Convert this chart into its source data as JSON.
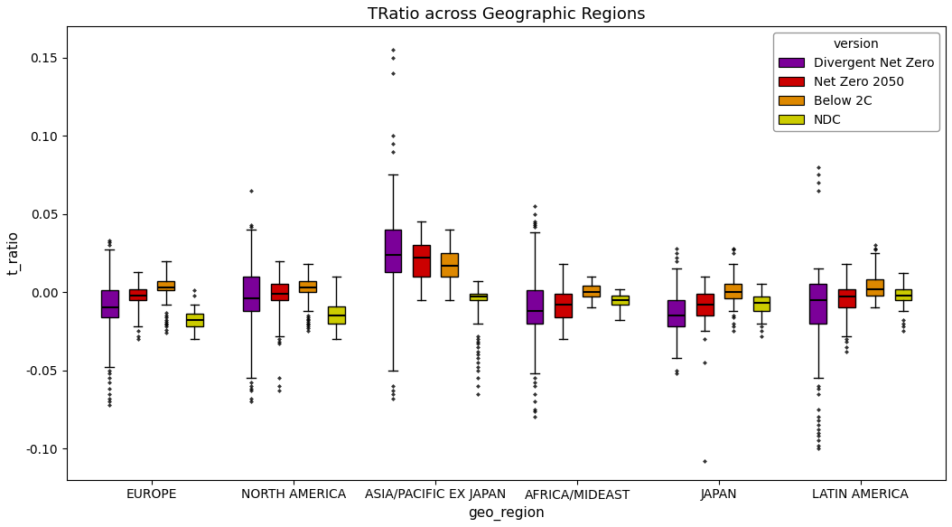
{
  "title": "TRatio across Geographic Regions",
  "xlabel": "geo_region",
  "ylabel": "t_ratio",
  "regions": [
    "EUROPE",
    "NORTH AMERICA",
    "ASIA/PACIFIC EX JAPAN",
    "AFRICA/MIDEAST",
    "JAPAN",
    "LATIN AMERICA"
  ],
  "versions": [
    "Divergent Net Zero",
    "Net Zero 2050",
    "Below 2C",
    "NDC"
  ],
  "colors": [
    "#7b0099",
    "#cc0000",
    "#dd8800",
    "#cccc00"
  ],
  "legend_title": "version",
  "ylim": [
    -0.12,
    0.17
  ],
  "yticks": [
    -0.1,
    -0.05,
    0.0,
    0.05,
    0.1,
    0.15
  ],
  "box_stats": {
    "EUROPE": {
      "Divergent Net Zero": {
        "q1": -0.016,
        "median": -0.01,
        "q3": 0.001,
        "whislo": -0.048,
        "whishi": 0.027,
        "fliers": [
          -0.055,
          -0.058,
          -0.062,
          -0.065,
          -0.072,
          -0.07,
          -0.068,
          0.03,
          0.032,
          0.033,
          -0.05,
          -0.052
        ]
      },
      "Net Zero 2050": {
        "q1": -0.005,
        "median": -0.002,
        "q3": 0.002,
        "whislo": -0.022,
        "whishi": 0.013,
        "fliers": [
          -0.028,
          -0.03,
          -0.025
        ]
      },
      "Below 2C": {
        "q1": 0.001,
        "median": 0.003,
        "q3": 0.007,
        "whislo": -0.008,
        "whishi": 0.02,
        "fliers": [
          -0.015,
          -0.018,
          -0.02,
          -0.013,
          -0.016,
          -0.019,
          -0.021,
          -0.022,
          -0.024,
          -0.026
        ]
      },
      "NDC": {
        "q1": -0.022,
        "median": -0.018,
        "q3": -0.014,
        "whislo": -0.03,
        "whishi": -0.008,
        "fliers": [
          0.001,
          -0.002
        ]
      }
    },
    "NORTH AMERICA": {
      "Divergent Net Zero": {
        "q1": -0.012,
        "median": -0.004,
        "q3": 0.01,
        "whislo": -0.055,
        "whishi": 0.04,
        "fliers": [
          -0.063,
          -0.068,
          -0.07,
          -0.058,
          -0.06,
          -0.062,
          0.065,
          0.042,
          0.043
        ]
      },
      "Net Zero 2050": {
        "q1": -0.005,
        "median": -0.001,
        "q3": 0.005,
        "whislo": -0.028,
        "whishi": 0.02,
        "fliers": [
          -0.055,
          -0.06,
          -0.063,
          -0.03,
          -0.032,
          -0.033
        ]
      },
      "Below 2C": {
        "q1": 0.0,
        "median": 0.003,
        "q3": 0.007,
        "whislo": -0.012,
        "whishi": 0.018,
        "fliers": [
          -0.018,
          -0.02,
          -0.022,
          -0.025,
          -0.015,
          -0.016,
          -0.017,
          -0.019,
          -0.021,
          -0.023
        ]
      },
      "NDC": {
        "q1": -0.02,
        "median": -0.015,
        "q3": -0.009,
        "whislo": -0.03,
        "whishi": 0.01,
        "fliers": []
      }
    },
    "ASIA/PACIFIC EX JAPAN": {
      "Divergent Net Zero": {
        "q1": 0.013,
        "median": 0.024,
        "q3": 0.04,
        "whislo": -0.05,
        "whishi": 0.075,
        "fliers": [
          -0.06,
          -0.065,
          -0.068,
          -0.063,
          0.09,
          0.14,
          0.15,
          0.155,
          0.095,
          0.1
        ]
      },
      "Net Zero 2050": {
        "q1": 0.01,
        "median": 0.022,
        "q3": 0.03,
        "whislo": -0.005,
        "whishi": 0.045,
        "fliers": []
      },
      "Below 2C": {
        "q1": 0.01,
        "median": 0.017,
        "q3": 0.025,
        "whislo": -0.005,
        "whishi": 0.04,
        "fliers": []
      },
      "NDC": {
        "q1": -0.005,
        "median": -0.003,
        "q3": -0.001,
        "whislo": -0.02,
        "whishi": 0.007,
        "fliers": [
          -0.03,
          -0.032,
          -0.035,
          -0.028,
          -0.033,
          -0.038,
          -0.04,
          -0.042,
          -0.045,
          -0.048,
          -0.05,
          -0.055,
          -0.06,
          -0.065
        ]
      }
    },
    "AFRICA/MIDEAST": {
      "Divergent Net Zero": {
        "q1": -0.02,
        "median": -0.012,
        "q3": 0.001,
        "whislo": -0.052,
        "whishi": 0.038,
        "fliers": [
          -0.06,
          -0.065,
          -0.07,
          -0.075,
          -0.076,
          -0.08,
          -0.055,
          -0.058,
          0.045,
          0.05,
          0.055,
          0.042,
          0.043,
          0.044
        ]
      },
      "Net Zero 2050": {
        "q1": -0.016,
        "median": -0.008,
        "q3": -0.001,
        "whislo": -0.03,
        "whishi": 0.018,
        "fliers": []
      },
      "Below 2C": {
        "q1": -0.003,
        "median": 0.0,
        "q3": 0.004,
        "whislo": -0.01,
        "whishi": 0.01,
        "fliers": []
      },
      "NDC": {
        "q1": -0.008,
        "median": -0.005,
        "q3": -0.002,
        "whislo": -0.018,
        "whishi": 0.002,
        "fliers": []
      }
    },
    "JAPAN": {
      "Divergent Net Zero": {
        "q1": -0.022,
        "median": -0.015,
        "q3": -0.005,
        "whislo": -0.042,
        "whishi": 0.015,
        "fliers": [
          -0.05,
          -0.052,
          0.02,
          0.022,
          0.025,
          0.028
        ]
      },
      "Net Zero 2050": {
        "q1": -0.015,
        "median": -0.008,
        "q3": -0.001,
        "whislo": -0.025,
        "whishi": 0.01,
        "fliers": [
          -0.108,
          -0.045,
          -0.03
        ]
      },
      "Below 2C": {
        "q1": -0.004,
        "median": 0.0,
        "q3": 0.005,
        "whislo": -0.012,
        "whishi": 0.018,
        "fliers": [
          -0.02,
          -0.022,
          -0.025,
          -0.015,
          -0.016,
          0.025,
          0.027,
          0.028
        ]
      },
      "NDC": {
        "q1": -0.012,
        "median": -0.007,
        "q3": -0.003,
        "whislo": -0.02,
        "whishi": 0.005,
        "fliers": [
          -0.025,
          -0.028,
          -0.022
        ]
      }
    },
    "LATIN AMERICA": {
      "Divergent Net Zero": {
        "q1": -0.02,
        "median": -0.005,
        "q3": 0.005,
        "whislo": -0.055,
        "whishi": 0.015,
        "fliers": [
          -0.075,
          -0.08,
          -0.082,
          -0.085,
          -0.088,
          -0.09,
          -0.092,
          -0.095,
          -0.098,
          -0.1,
          -0.06,
          -0.062,
          -0.065,
          0.065,
          0.07,
          0.075,
          0.08
        ]
      },
      "Net Zero 2050": {
        "q1": -0.01,
        "median": -0.003,
        "q3": 0.002,
        "whislo": -0.028,
        "whishi": 0.018,
        "fliers": [
          -0.035,
          -0.038,
          -0.03,
          -0.032
        ]
      },
      "Below 2C": {
        "q1": -0.002,
        "median": 0.002,
        "q3": 0.008,
        "whislo": -0.01,
        "whishi": 0.025,
        "fliers": [
          0.028,
          0.03,
          0.027
        ]
      },
      "NDC": {
        "q1": -0.005,
        "median": -0.002,
        "q3": 0.002,
        "whislo": -0.012,
        "whishi": 0.012,
        "fliers": [
          -0.018,
          -0.02,
          -0.022,
          -0.025
        ]
      }
    }
  }
}
